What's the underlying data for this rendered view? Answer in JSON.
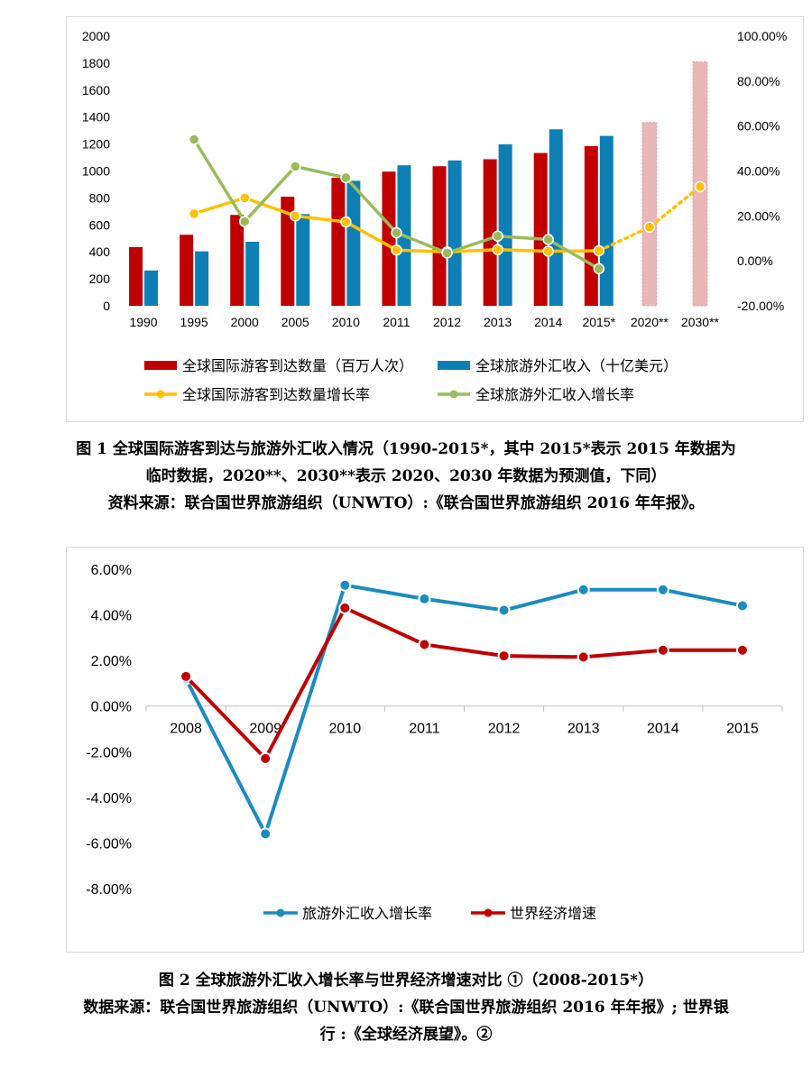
{
  "figure1": {
    "caption_lines": [
      "图 1  全球国际游客到达与旅游外汇收入情况（1990-2015*，其中 2015*表示 2015 年数据为",
      "临时数据，2020**、2030**表示 2020、2030 年数据为预测值，下同）",
      "资料来源：联合国世界旅游组织（UNWTO）:《联合国世界旅游组织 2016 年年报》。"
    ],
    "chart_data": {
      "type": "bar",
      "categories": [
        "1990",
        "1995",
        "2000",
        "2005",
        "2010",
        "2011",
        "2012",
        "2013",
        "2014",
        "2015*",
        "2020**",
        "2030**"
      ],
      "y_left": {
        "min": 0,
        "max": 2000,
        "ticks": [
          "0",
          "200",
          "400",
          "600",
          "800",
          "1000",
          "1200",
          "1400",
          "1600",
          "1800",
          "2000"
        ]
      },
      "y_right": {
        "min": -20,
        "max": 100,
        "ticks": [
          "-20.00%",
          "0.00%",
          "20.00%",
          "40.00%",
          "60.00%",
          "80.00%",
          "100.00%"
        ]
      },
      "series": [
        {
          "name": "全球国际游客到达数量（百万人次）",
          "type": "bar",
          "color": "#c00000",
          "values": [
            435,
            527,
            674,
            809,
            949,
            995,
            1035,
            1087,
            1133,
            1184,
            1360,
            1809
          ],
          "forecast_color": "#e8b7b7"
        },
        {
          "name": "全球旅游外汇收入（十亿美元）",
          "type": "bar",
          "color": "#0e7fb5",
          "values": [
            262,
            404,
            475,
            680,
            927,
            1042,
            1078,
            1197,
            1309,
            1260,
            null,
            null
          ]
        },
        {
          "name": "全球国际游客到达数量增长率",
          "type": "line",
          "color": "#ffc000",
          "values": [
            null,
            21,
            28,
            20,
            17.3,
            4.8,
            4.0,
            5.0,
            4.3,
            4.5,
            15,
            33
          ],
          "dashed_from": "2015*"
        },
        {
          "name": "全球旅游外汇收入增长率",
          "type": "line",
          "color": "#9bbb59",
          "values": [
            null,
            54,
            17.5,
            42,
            37,
            12.5,
            3.5,
            11,
            9.5,
            -3.5,
            null,
            null
          ]
        }
      ]
    }
  },
  "figure2": {
    "caption_lines": [
      "图 2  全球旅游外汇收入增长率与世界经济增速对比 ①（2008-2015*）",
      "数据来源：联合国世界旅游组织（UNWTO）:《联合国世界旅游组织 2016 年年报》; 世界银",
      "行 :《全球经济展望》。②"
    ],
    "chart_data": {
      "type": "line",
      "categories": [
        "2008",
        "2009",
        "2010",
        "2011",
        "2012",
        "2013",
        "2014",
        "2015"
      ],
      "y": {
        "min": -8,
        "max": 6,
        "ticks": [
          "6.00%",
          "4.00%",
          "2.00%",
          "0.00%",
          "-2.00%",
          "-4.00%",
          "-6.00%",
          "-8.00%"
        ]
      },
      "series": [
        {
          "name": "旅游外汇收入增长率",
          "color": "#1b8bc0",
          "values": [
            1.2,
            -5.6,
            5.3,
            4.7,
            4.2,
            5.1,
            5.1,
            4.4
          ]
        },
        {
          "name": "世界经济增速",
          "color": "#c00000",
          "values": [
            1.3,
            -2.3,
            4.3,
            2.7,
            2.2,
            2.15,
            2.45,
            2.45
          ]
        }
      ]
    }
  }
}
